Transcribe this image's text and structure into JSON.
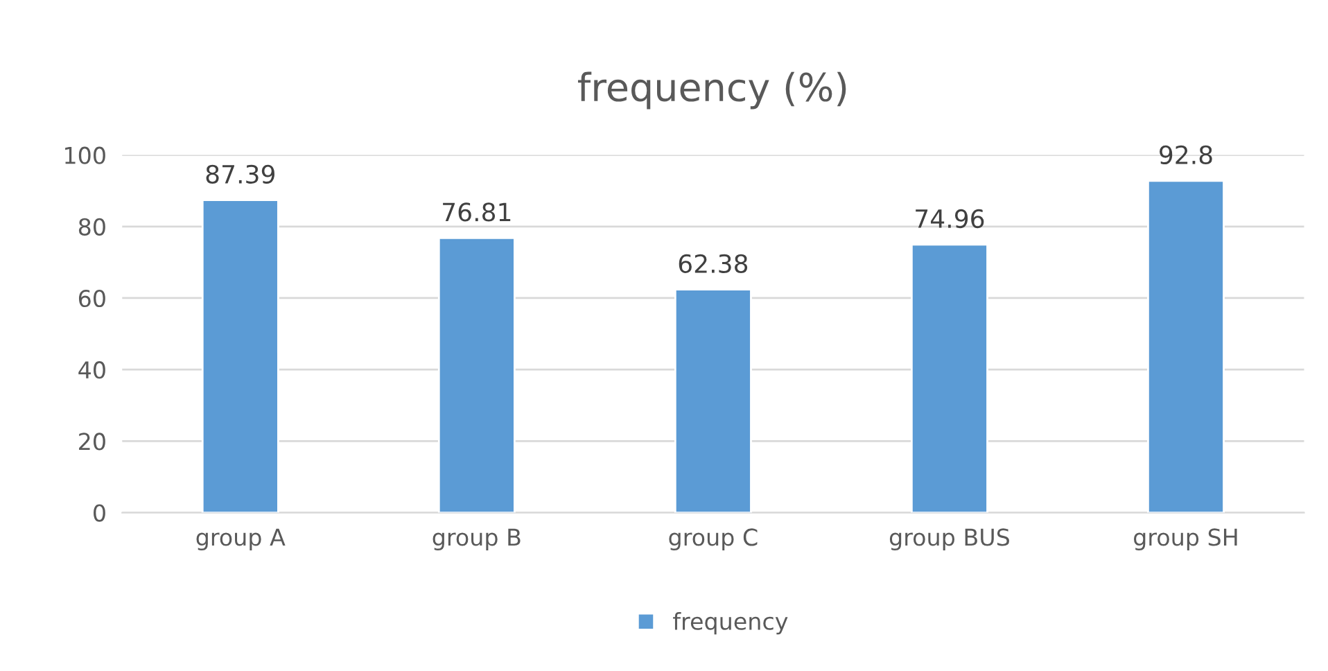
{
  "chart_data": {
    "type": "bar",
    "title": "frequency (%)",
    "categories": [
      "group A",
      "group B",
      "group C",
      "group BUS",
      "group SH"
    ],
    "series": [
      {
        "name": "frequency",
        "color": "#5b9bd5",
        "values": [
          87.39,
          76.81,
          62.38,
          74.96,
          92.8
        ]
      }
    ],
    "ylim": [
      0,
      100
    ],
    "yticks": [
      0,
      20,
      40,
      60,
      80,
      100
    ],
    "grid": "y",
    "legend": "bottom",
    "data_labels": true
  }
}
